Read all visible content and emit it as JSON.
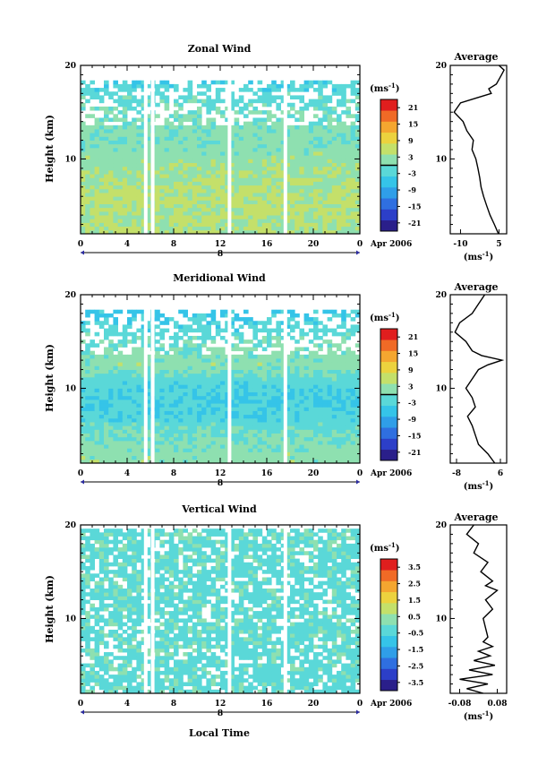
{
  "figure": {
    "xlabel": "Local Time",
    "date_label": "Apr 2006",
    "day_label": "8",
    "cb_unit": "(ms",
    "cb_unit_exp": "-1",
    "cb_unit_close": ")",
    "avg_title": "Average"
  },
  "palette": [
    "#2a1f8a",
    "#2c3fc8",
    "#2f6fe0",
    "#2f9ee8",
    "#35c4e8",
    "#5ad8d8",
    "#8ee0b0",
    "#c4e06a",
    "#ecd23e",
    "#f4a630",
    "#f06a26",
    "#e01e1e"
  ],
  "chart_data": [
    {
      "id": "zonal",
      "type": "heatmap",
      "title": "Zonal Wind",
      "ylabel": "Height (km)",
      "xlim": [
        0,
        24
      ],
      "ylim": [
        2,
        20
      ],
      "xticks": [
        "0",
        "4",
        "8",
        "12",
        "16",
        "20",
        "0"
      ],
      "xtick_values": [
        0,
        4,
        8,
        12,
        16,
        20,
        24
      ],
      "yticks": [
        10,
        20
      ],
      "gaps": [
        5.6,
        6.2,
        12.8,
        17.6
      ],
      "colorbar": {
        "min": -24,
        "max": 24,
        "ticks": [
          "21",
          "15",
          "9",
          "3",
          "-3",
          "-9",
          "-15",
          "-21"
        ],
        "tick_values": [
          21,
          15,
          9,
          3,
          -3,
          -9,
          -15,
          -21
        ],
        "zero_line": true
      },
      "profile_nodes": [
        [
          3,
          4
        ],
        [
          6,
          5
        ],
        [
          9,
          3
        ],
        [
          12,
          1
        ],
        [
          15,
          0
        ],
        [
          18,
          -3
        ],
        [
          20,
          -6
        ]
      ],
      "data_top_km": 18.5,
      "average": {
        "xlim": [
          -14,
          8
        ],
        "xticks": [
          "-10",
          "5"
        ],
        "xtick_values": [
          -10,
          5
        ],
        "yticks": [
          10,
          20
        ],
        "ylim": [
          2,
          20
        ],
        "profile": [
          [
            2.0,
            4.8
          ],
          [
            3.0,
            3.2
          ],
          [
            4.0,
            1.5
          ],
          [
            5.0,
            0.2
          ],
          [
            6.0,
            -1.0
          ],
          [
            7.0,
            -2.0
          ],
          [
            8.0,
            -2.5
          ],
          [
            9.0,
            -3.2
          ],
          [
            10.0,
            -4.0
          ],
          [
            11.0,
            -5.5
          ],
          [
            12.0,
            -5.0
          ],
          [
            13.0,
            -7.5
          ],
          [
            14.0,
            -9.0
          ],
          [
            15.0,
            -12.5
          ],
          [
            16.0,
            -10.0
          ],
          [
            16.5,
            -4.0
          ],
          [
            17.0,
            2.0
          ],
          [
            17.5,
            1.0
          ],
          [
            18.0,
            4.0
          ],
          [
            18.5,
            5.0
          ],
          [
            19.0,
            6.0
          ],
          [
            19.5,
            7.0
          ],
          [
            20.0,
            5.0
          ]
        ]
      }
    },
    {
      "id": "meridional",
      "type": "heatmap",
      "title": "Meridional Wind",
      "ylabel": "Height (km)",
      "xlim": [
        0,
        24
      ],
      "ylim": [
        2,
        20
      ],
      "xticks": [
        "0",
        "4",
        "8",
        "12",
        "16",
        "20",
        "0"
      ],
      "xtick_values": [
        0,
        4,
        8,
        12,
        16,
        20,
        24
      ],
      "yticks": [
        10,
        20
      ],
      "gaps": [
        5.6,
        6.2,
        12.8,
        17.6
      ],
      "colorbar": {
        "min": -24,
        "max": 24,
        "ticks": [
          "21",
          "15",
          "9",
          "3",
          "-3",
          "-9",
          "-15",
          "-21"
        ],
        "tick_values": [
          21,
          15,
          9,
          3,
          -3,
          -9,
          -15,
          -21
        ],
        "zero_line": true
      },
      "profile_nodes": [
        [
          3,
          2
        ],
        [
          5,
          0
        ],
        [
          7,
          -3
        ],
        [
          9,
          -4
        ],
        [
          11,
          -2
        ],
        [
          12.5,
          2
        ],
        [
          14,
          1
        ],
        [
          16,
          -2
        ],
        [
          18,
          -5
        ],
        [
          20,
          -6
        ]
      ],
      "data_top_km": 18.5,
      "average": {
        "xlim": [
          -10,
          8
        ],
        "xticks": [
          "-8",
          "6"
        ],
        "xtick_values": [
          -8,
          6
        ],
        "yticks": [
          10,
          20
        ],
        "ylim": [
          2,
          20
        ],
        "profile": [
          [
            2.0,
            4.2
          ],
          [
            3.0,
            2.0
          ],
          [
            4.0,
            -1.0
          ],
          [
            5.0,
            -2.0
          ],
          [
            6.0,
            -3.0
          ],
          [
            7.0,
            -4.5
          ],
          [
            8.0,
            -2.0
          ],
          [
            9.0,
            -3.0
          ],
          [
            10.0,
            -5.0
          ],
          [
            11.0,
            -3.0
          ],
          [
            12.0,
            -1.0
          ],
          [
            12.5,
            2.0
          ],
          [
            13.0,
            6.5
          ],
          [
            13.5,
            0.0
          ],
          [
            14.0,
            -3.0
          ],
          [
            15.0,
            -5.0
          ],
          [
            16.0,
            -8.5
          ],
          [
            17.0,
            -7.0
          ],
          [
            18.0,
            -3.0
          ],
          [
            19.0,
            -1.0
          ],
          [
            20.0,
            1.0
          ]
        ]
      }
    },
    {
      "id": "vertical",
      "type": "heatmap",
      "title": "Vertical Wind",
      "ylabel": "Height (km)",
      "xlabel": "Local Time",
      "xlim": [
        0,
        24
      ],
      "ylim": [
        2,
        20
      ],
      "xticks": [
        "0",
        "4",
        "8",
        "12",
        "16",
        "20",
        "0"
      ],
      "xtick_values": [
        0,
        4,
        8,
        12,
        16,
        20,
        24
      ],
      "yticks": [
        10,
        20
      ],
      "gaps": [
        5.6,
        6.2,
        12.8,
        17.6
      ],
      "colorbar": {
        "min": -4,
        "max": 4,
        "ticks": [
          "3.5",
          "2.5",
          "1.5",
          "0.5",
          "-0.5",
          "-1.5",
          "-2.5",
          "-3.5"
        ],
        "tick_values": [
          3.5,
          2.5,
          1.5,
          0.5,
          -0.5,
          -1.5,
          -2.5,
          -3.5
        ],
        "zero_line": false
      },
      "profile_nodes": [
        [
          3,
          -0.2
        ],
        [
          20,
          -0.2
        ]
      ],
      "data_top_km": 19.5,
      "average": {
        "xlim": [
          -0.12,
          0.12
        ],
        "xticks": [
          "-0.08",
          "0.08"
        ],
        "xtick_values": [
          -0.08,
          0.08
        ],
        "yticks": [
          10,
          20
        ],
        "ylim": [
          2,
          20
        ],
        "profile": [
          [
            2.0,
            0.02
          ],
          [
            2.5,
            -0.05
          ],
          [
            3.0,
            0.04
          ],
          [
            3.5,
            -0.08
          ],
          [
            4.0,
            0.06
          ],
          [
            4.5,
            -0.04
          ],
          [
            5.0,
            0.07
          ],
          [
            5.5,
            -0.02
          ],
          [
            6.0,
            0.05
          ],
          [
            6.5,
            0.0
          ],
          [
            7.0,
            0.06
          ],
          [
            7.5,
            0.02
          ],
          [
            8.0,
            0.04
          ],
          [
            9.0,
            0.03
          ],
          [
            10.0,
            0.02
          ],
          [
            11.0,
            0.06
          ],
          [
            12.0,
            0.03
          ],
          [
            13.0,
            0.08
          ],
          [
            13.5,
            0.03
          ],
          [
            14.0,
            0.06
          ],
          [
            15.0,
            0.01
          ],
          [
            16.0,
            0.04
          ],
          [
            17.0,
            -0.02
          ],
          [
            18.0,
            0.0
          ],
          [
            19.0,
            -0.05
          ],
          [
            20.0,
            -0.02
          ]
        ]
      }
    }
  ]
}
